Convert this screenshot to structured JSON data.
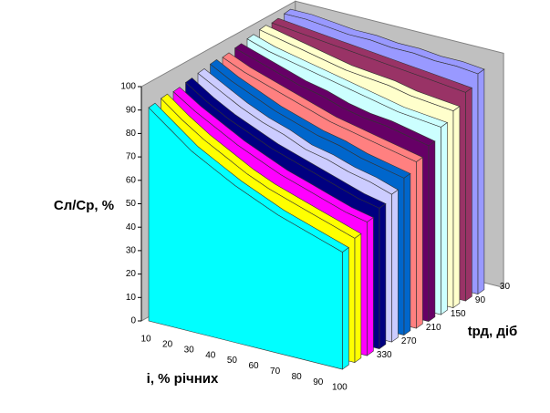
{
  "chart_data": {
    "type": "area3d",
    "y_label": "Cл/Cр, %",
    "x_label": "і, % річних",
    "z_label": "tрд, діб",
    "categories": [
      10,
      20,
      30,
      40,
      50,
      60,
      70,
      80,
      90,
      100
    ],
    "z_categories": [
      30,
      null,
      90,
      null,
      150,
      null,
      210,
      null,
      270,
      null,
      330,
      null
    ],
    "ylim": [
      0,
      100
    ],
    "yticks": [
      0,
      10,
      20,
      30,
      40,
      50,
      60,
      70,
      80,
      90,
      100
    ],
    "series": [
      {
        "color": "#9999ff",
        "values": [
          99,
          99,
          98,
          97,
          97,
          96,
          96,
          95,
          95,
          94
        ]
      },
      {
        "color": "#993366",
        "values": [
          98,
          97,
          96,
          95,
          94,
          93,
          92,
          91,
          90,
          89
        ]
      },
      {
        "color": "#ffffcc",
        "values": [
          98,
          96,
          94,
          92,
          90,
          89,
          88,
          86,
          85,
          84
        ]
      },
      {
        "color": "#ccffff",
        "values": [
          97,
          94,
          92,
          90,
          88,
          86,
          84,
          82,
          81,
          80
        ]
      },
      {
        "color": "#660066",
        "values": [
          96,
          93,
          90,
          87,
          85,
          82,
          80,
          79,
          77,
          75
        ]
      },
      {
        "color": "#ff8080",
        "values": [
          95,
          91,
          88,
          85,
          82,
          79,
          77,
          75,
          73,
          71
        ]
      },
      {
        "color": "#0066cc",
        "values": [
          95,
          90,
          86,
          82,
          79,
          76,
          74,
          71,
          69,
          67
        ]
      },
      {
        "color": "#ccccff",
        "values": [
          94,
          89,
          84,
          80,
          77,
          73,
          71,
          68,
          66,
          63
        ]
      },
      {
        "color": "#000080",
        "values": [
          93,
          87,
          82,
          78,
          74,
          71,
          68,
          65,
          62,
          60
        ]
      },
      {
        "color": "#ff00ff",
        "values": [
          92,
          86,
          81,
          76,
          72,
          68,
          65,
          62,
          59,
          57
        ]
      },
      {
        "color": "#ffff00",
        "values": [
          92,
          85,
          79,
          74,
          69,
          65,
          62,
          59,
          56,
          53
        ]
      },
      {
        "color": "#00ffff",
        "values": [
          91,
          84,
          77,
          72,
          67,
          63,
          59,
          56,
          53,
          50
        ]
      }
    ]
  }
}
